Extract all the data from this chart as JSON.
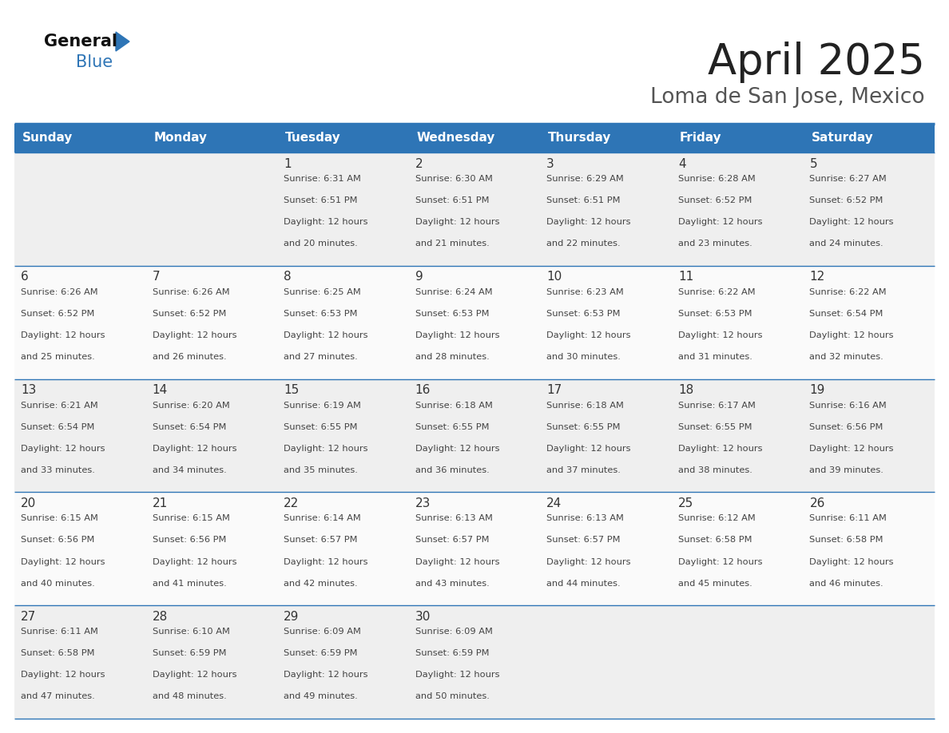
{
  "title": "April 2025",
  "subtitle": "Loma de San Jose, Mexico",
  "days_of_week": [
    "Sunday",
    "Monday",
    "Tuesday",
    "Wednesday",
    "Thursday",
    "Friday",
    "Saturday"
  ],
  "header_bg": "#2E75B6",
  "header_text_color": "#FFFFFF",
  "cell_bg_odd": "#EFEFEF",
  "cell_bg_even": "#FAFAFA",
  "border_color": "#2E75B6",
  "day_num_color": "#333333",
  "text_color": "#444444",
  "calendar_data": [
    [
      {
        "day": "",
        "sunrise": "",
        "sunset": "",
        "daylight_min": 0
      },
      {
        "day": "",
        "sunrise": "",
        "sunset": "",
        "daylight_min": 0
      },
      {
        "day": "1",
        "sunrise": "6:31 AM",
        "sunset": "6:51 PM",
        "daylight_min": 20
      },
      {
        "day": "2",
        "sunrise": "6:30 AM",
        "sunset": "6:51 PM",
        "daylight_min": 21
      },
      {
        "day": "3",
        "sunrise": "6:29 AM",
        "sunset": "6:51 PM",
        "daylight_min": 22
      },
      {
        "day": "4",
        "sunrise": "6:28 AM",
        "sunset": "6:52 PM",
        "daylight_min": 23
      },
      {
        "day": "5",
        "sunrise": "6:27 AM",
        "sunset": "6:52 PM",
        "daylight_min": 24
      }
    ],
    [
      {
        "day": "6",
        "sunrise": "6:26 AM",
        "sunset": "6:52 PM",
        "daylight_min": 25
      },
      {
        "day": "7",
        "sunrise": "6:26 AM",
        "sunset": "6:52 PM",
        "daylight_min": 26
      },
      {
        "day": "8",
        "sunrise": "6:25 AM",
        "sunset": "6:53 PM",
        "daylight_min": 27
      },
      {
        "day": "9",
        "sunrise": "6:24 AM",
        "sunset": "6:53 PM",
        "daylight_min": 28
      },
      {
        "day": "10",
        "sunrise": "6:23 AM",
        "sunset": "6:53 PM",
        "daylight_min": 30
      },
      {
        "day": "11",
        "sunrise": "6:22 AM",
        "sunset": "6:53 PM",
        "daylight_min": 31
      },
      {
        "day": "12",
        "sunrise": "6:22 AM",
        "sunset": "6:54 PM",
        "daylight_min": 32
      }
    ],
    [
      {
        "day": "13",
        "sunrise": "6:21 AM",
        "sunset": "6:54 PM",
        "daylight_min": 33
      },
      {
        "day": "14",
        "sunrise": "6:20 AM",
        "sunset": "6:54 PM",
        "daylight_min": 34
      },
      {
        "day": "15",
        "sunrise": "6:19 AM",
        "sunset": "6:55 PM",
        "daylight_min": 35
      },
      {
        "day": "16",
        "sunrise": "6:18 AM",
        "sunset": "6:55 PM",
        "daylight_min": 36
      },
      {
        "day": "17",
        "sunrise": "6:18 AM",
        "sunset": "6:55 PM",
        "daylight_min": 37
      },
      {
        "day": "18",
        "sunrise": "6:17 AM",
        "sunset": "6:55 PM",
        "daylight_min": 38
      },
      {
        "day": "19",
        "sunrise": "6:16 AM",
        "sunset": "6:56 PM",
        "daylight_min": 39
      }
    ],
    [
      {
        "day": "20",
        "sunrise": "6:15 AM",
        "sunset": "6:56 PM",
        "daylight_min": 40
      },
      {
        "day": "21",
        "sunrise": "6:15 AM",
        "sunset": "6:56 PM",
        "daylight_min": 41
      },
      {
        "day": "22",
        "sunrise": "6:14 AM",
        "sunset": "6:57 PM",
        "daylight_min": 42
      },
      {
        "day": "23",
        "sunrise": "6:13 AM",
        "sunset": "6:57 PM",
        "daylight_min": 43
      },
      {
        "day": "24",
        "sunrise": "6:13 AM",
        "sunset": "6:57 PM",
        "daylight_min": 44
      },
      {
        "day": "25",
        "sunrise": "6:12 AM",
        "sunset": "6:58 PM",
        "daylight_min": 45
      },
      {
        "day": "26",
        "sunrise": "6:11 AM",
        "sunset": "6:58 PM",
        "daylight_min": 46
      }
    ],
    [
      {
        "day": "27",
        "sunrise": "6:11 AM",
        "sunset": "6:58 PM",
        "daylight_min": 47
      },
      {
        "day": "28",
        "sunrise": "6:10 AM",
        "sunset": "6:59 PM",
        "daylight_min": 48
      },
      {
        "day": "29",
        "sunrise": "6:09 AM",
        "sunset": "6:59 PM",
        "daylight_min": 49
      },
      {
        "day": "30",
        "sunrise": "6:09 AM",
        "sunset": "6:59 PM",
        "daylight_min": 50
      },
      {
        "day": "",
        "sunrise": "",
        "sunset": "",
        "daylight_min": 0
      },
      {
        "day": "",
        "sunrise": "",
        "sunset": "",
        "daylight_min": 0
      },
      {
        "day": "",
        "sunrise": "",
        "sunset": "",
        "daylight_min": 0
      }
    ]
  ]
}
